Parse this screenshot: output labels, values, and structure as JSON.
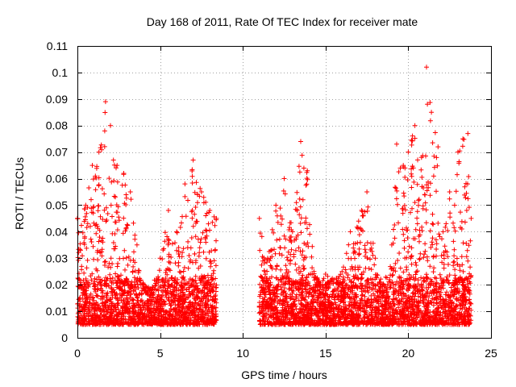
{
  "chart_data": {
    "type": "scatter",
    "title": "Day 168 of 2011, Rate Of TEC Index for receiver mate",
    "xlabel": "GPS time / hours",
    "ylabel": "ROTI / TECUs",
    "xlim": [
      0,
      25
    ],
    "ylim": [
      0,
      0.11
    ],
    "xticks": [
      "0",
      "5",
      "10",
      "15",
      "20",
      "25"
    ],
    "yticks": [
      "0",
      "0.01",
      "0.02",
      "0.03",
      "0.04",
      "0.05",
      "0.06",
      "0.07",
      "0.08",
      "0.09",
      "0.1",
      "0.11"
    ],
    "grid": true,
    "marker": "plus",
    "color": "#ff0000",
    "segments": [
      {
        "x_range": [
          0.0,
          8.4
        ]
      },
      {
        "x_range": [
          11.0,
          23.8
        ]
      }
    ],
    "envelope": {
      "x": [
        0.0,
        0.5,
        0.9,
        1.3,
        1.7,
        2.0,
        2.4,
        2.8,
        3.2,
        3.6,
        4.0,
        4.5,
        5.0,
        5.5,
        6.0,
        6.5,
        7.0,
        7.5,
        8.0,
        8.4,
        11.0,
        11.5,
        12.0,
        12.5,
        13.0,
        13.5,
        13.9,
        14.3,
        14.7,
        15.0,
        15.5,
        16.0,
        16.5,
        17.0,
        17.5,
        18.0,
        18.5,
        19.0,
        19.3,
        19.7,
        20.0,
        20.4,
        20.8,
        21.1,
        21.4,
        21.8,
        22.1,
        22.5,
        22.8,
        23.0,
        23.3,
        23.6,
        23.8
      ],
      "y_max": [
        0.045,
        0.05,
        0.065,
        0.07,
        0.089,
        0.08,
        0.065,
        0.062,
        0.055,
        0.035,
        0.02,
        0.018,
        0.03,
        0.048,
        0.04,
        0.058,
        0.067,
        0.055,
        0.048,
        0.045,
        0.045,
        0.03,
        0.05,
        0.06,
        0.04,
        0.074,
        0.063,
        0.025,
        0.02,
        0.024,
        0.022,
        0.025,
        0.04,
        0.044,
        0.055,
        0.03,
        0.02,
        0.035,
        0.073,
        0.065,
        0.07,
        0.08,
        0.068,
        0.102,
        0.085,
        0.072,
        0.04,
        0.055,
        0.05,
        0.07,
        0.075,
        0.077,
        0.045
      ]
    }
  }
}
